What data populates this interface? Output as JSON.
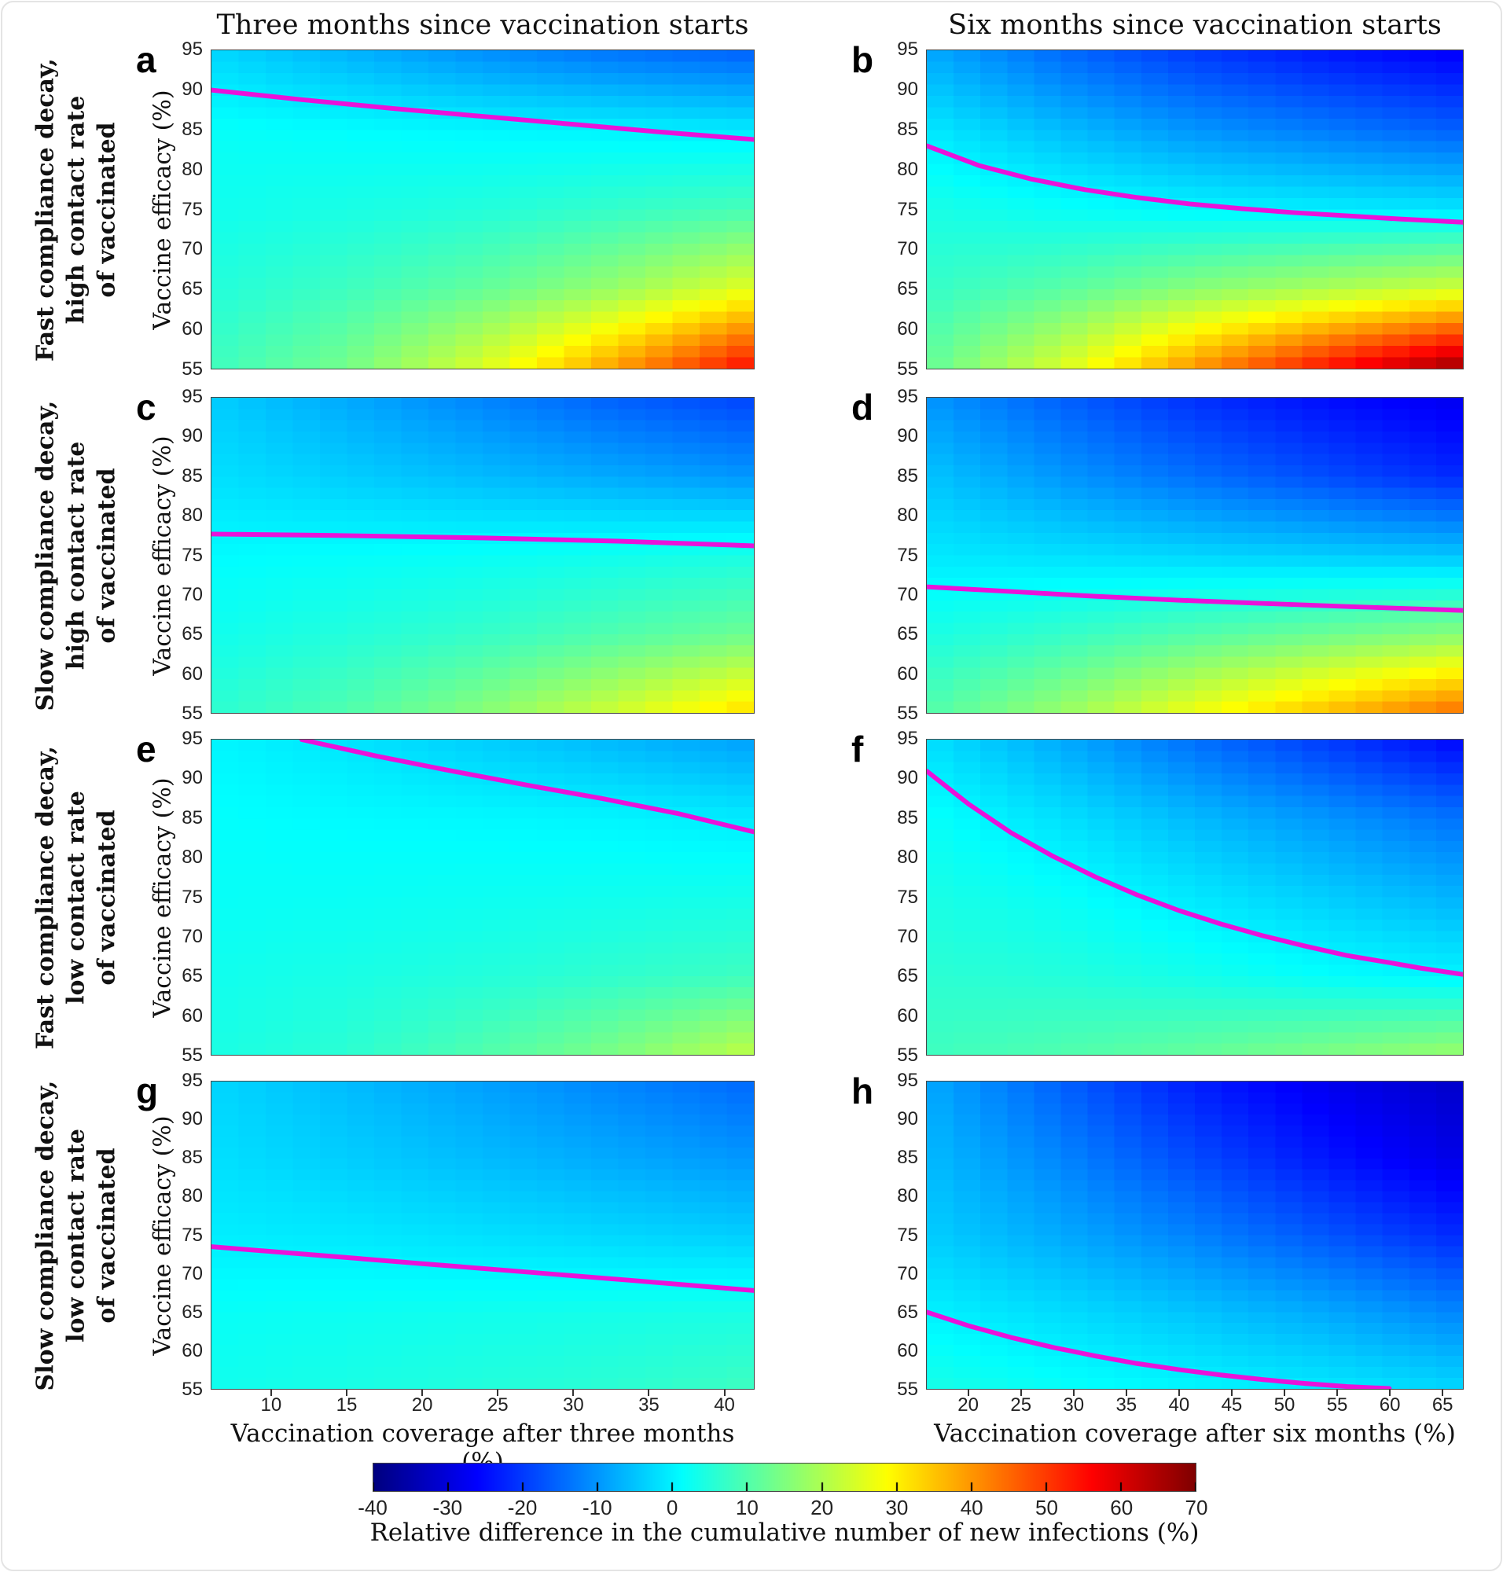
{
  "figure": {
    "col_titles": [
      "Three months since vaccination starts",
      "Six months since vaccination starts"
    ],
    "row_labels": [
      [
        "Fast compliance decay,",
        "high contact rate",
        "of vaccinated"
      ],
      [
        "Slow compliance decay,",
        "high contact rate",
        "of vaccinated"
      ],
      [
        "Fast compliance decay,",
        "low contact rate",
        "of vaccinated"
      ],
      [
        "Slow compliance decay,",
        "low contact rate",
        "of vaccinated"
      ]
    ],
    "y_axis_label": "Vaccine efficacy (%)",
    "x_axis_labels": [
      "Vaccination coverage after three months (%)",
      "Vaccination coverage after six months (%)"
    ],
    "panel_letters": [
      "a",
      "b",
      "c",
      "d",
      "e",
      "f",
      "g",
      "h"
    ],
    "colorbar": {
      "label": "Relative difference in the cumulative number of new infections (%)",
      "min": -40,
      "max": 70,
      "ticks": [
        -40,
        -30,
        -20,
        -10,
        0,
        10,
        20,
        30,
        40,
        50,
        60,
        70
      ],
      "colormap": "jet"
    },
    "contour_color": "#e912d9"
  },
  "chart_data": [
    {
      "type": "heatmap",
      "id": "a",
      "letter": "a",
      "row": 0,
      "col": 0,
      "x_range": [
        6,
        42
      ],
      "y_range": [
        55,
        95
      ],
      "x_ticks": [
        10,
        15,
        20,
        25,
        30,
        35,
        40
      ],
      "y_ticks": [
        55,
        60,
        65,
        70,
        75,
        80,
        85,
        90,
        95
      ],
      "grid": {
        "x": [
          6,
          15,
          24,
          33,
          42
        ],
        "y": [
          95,
          85,
          75,
          65,
          55
        ],
        "values": [
          [
            -3,
            -7,
            -11,
            -14,
            -16
          ],
          [
            2,
            1.2,
            0.6,
            0,
            -1
          ],
          [
            3,
            4,
            5,
            7,
            9
          ],
          [
            5,
            8,
            12,
            18,
            26
          ],
          [
            8,
            14,
            25,
            40,
            56
          ]
        ]
      },
      "zero_contour": [
        [
          6,
          90
        ],
        [
          12,
          88.8
        ],
        [
          18,
          87.7
        ],
        [
          24,
          86.7
        ],
        [
          30,
          85.7
        ],
        [
          36,
          84.7
        ],
        [
          42,
          83.8
        ]
      ]
    },
    {
      "type": "heatmap",
      "id": "b",
      "letter": "b",
      "row": 0,
      "col": 1,
      "x_range": [
        16,
        67
      ],
      "y_range": [
        55,
        95
      ],
      "x_ticks": [
        20,
        25,
        30,
        35,
        40,
        45,
        50,
        55,
        60,
        65
      ],
      "y_ticks": [
        55,
        60,
        65,
        70,
        75,
        80,
        85,
        90,
        95
      ],
      "grid": {
        "x": [
          16,
          29,
          41,
          54,
          67
        ],
        "y": [
          95,
          85,
          75,
          65,
          55
        ],
        "values": [
          [
            -8,
            -15,
            -20,
            -24,
            -27
          ],
          [
            -1,
            -6,
            -10,
            -13,
            -16
          ],
          [
            4,
            2,
            0.5,
            -0.5,
            -1.5
          ],
          [
            7,
            11,
            16,
            20,
            24
          ],
          [
            12,
            25,
            40,
            55,
            68
          ]
        ]
      },
      "zero_contour": [
        [
          16,
          83
        ],
        [
          21,
          80.5
        ],
        [
          26,
          78.8
        ],
        [
          31,
          77.5
        ],
        [
          36,
          76.5
        ],
        [
          41,
          75.7
        ],
        [
          46,
          75.1
        ],
        [
          51,
          74.6
        ],
        [
          56,
          74.2
        ],
        [
          61,
          73.8
        ],
        [
          67,
          73.4
        ]
      ]
    },
    {
      "type": "heatmap",
      "id": "c",
      "letter": "c",
      "row": 1,
      "col": 0,
      "x_range": [
        6,
        42
      ],
      "y_range": [
        55,
        95
      ],
      "x_ticks": [
        10,
        15,
        20,
        25,
        30,
        35,
        40
      ],
      "y_ticks": [
        55,
        60,
        65,
        70,
        75,
        80,
        85,
        90,
        95
      ],
      "grid": {
        "x": [
          6,
          15,
          24,
          33,
          42
        ],
        "y": [
          95,
          85,
          75,
          65,
          55
        ],
        "values": [
          [
            -4,
            -8,
            -12,
            -16,
            -19
          ],
          [
            -2,
            -4,
            -6,
            -8,
            -10
          ],
          [
            1,
            1.5,
            2,
            3,
            4
          ],
          [
            3,
            5,
            7,
            10,
            13
          ],
          [
            6,
            10,
            16,
            24,
            33
          ]
        ]
      },
      "zero_contour": [
        [
          6,
          77.7
        ],
        [
          15,
          77.5
        ],
        [
          24,
          77.2
        ],
        [
          33,
          76.8
        ],
        [
          42,
          76.2
        ]
      ]
    },
    {
      "type": "heatmap",
      "id": "d",
      "letter": "d",
      "row": 1,
      "col": 1,
      "x_range": [
        16,
        67
      ],
      "y_range": [
        55,
        95
      ],
      "x_ticks": [
        20,
        25,
        30,
        35,
        40,
        45,
        50,
        55,
        60,
        65
      ],
      "y_ticks": [
        55,
        60,
        65,
        70,
        75,
        80,
        85,
        90,
        95
      ],
      "grid": {
        "x": [
          16,
          29,
          41,
          54,
          67
        ],
        "y": [
          95,
          85,
          75,
          65,
          55
        ],
        "values": [
          [
            -10,
            -16,
            -21,
            -25,
            -28
          ],
          [
            -5,
            -10,
            -14,
            -18,
            -22
          ],
          [
            -1,
            -2,
            -3,
            -4,
            -5
          ],
          [
            4,
            7,
            10,
            13,
            16
          ],
          [
            10,
            18,
            27,
            36,
            45
          ]
        ]
      },
      "zero_contour": [
        [
          16,
          71
        ],
        [
          24,
          70.4
        ],
        [
          32,
          69.8
        ],
        [
          40,
          69.3
        ],
        [
          48,
          68.9
        ],
        [
          56,
          68.5
        ],
        [
          67,
          68
        ]
      ]
    },
    {
      "type": "heatmap",
      "id": "e",
      "letter": "e",
      "row": 2,
      "col": 0,
      "x_range": [
        6,
        42
      ],
      "y_range": [
        55,
        95
      ],
      "x_ticks": [
        10,
        15,
        20,
        25,
        30,
        35,
        40
      ],
      "y_ticks": [
        55,
        60,
        65,
        70,
        75,
        80,
        85,
        90,
        95
      ],
      "grid": {
        "x": [
          6,
          15,
          24,
          33,
          42
        ],
        "y": [
          95,
          85,
          75,
          65,
          55
        ],
        "values": [
          [
            0.5,
            -1.5,
            -4,
            -6.5,
            -9
          ],
          [
            1.5,
            1,
            0.7,
            0.3,
            -0.8
          ],
          [
            2,
            2.2,
            2.6,
            3,
            3.5
          ],
          [
            3,
            4,
            5,
            6.5,
            8
          ],
          [
            4,
            6,
            10,
            15,
            22
          ]
        ]
      },
      "zero_contour": [
        [
          12,
          95
        ],
        [
          17,
          92.9
        ],
        [
          22,
          91
        ],
        [
          27,
          89.2
        ],
        [
          32,
          87.5
        ],
        [
          37,
          85.6
        ],
        [
          42,
          83.3
        ]
      ]
    },
    {
      "type": "heatmap",
      "id": "f",
      "letter": "f",
      "row": 2,
      "col": 1,
      "x_range": [
        16,
        67
      ],
      "y_range": [
        55,
        95
      ],
      "x_ticks": [
        20,
        25,
        30,
        35,
        40,
        45,
        50,
        55,
        60,
        65
      ],
      "y_ticks": [
        55,
        60,
        65,
        70,
        75,
        80,
        85,
        90,
        95
      ],
      "grid": {
        "x": [
          16,
          29,
          41,
          54,
          67
        ],
        "y": [
          95,
          85,
          75,
          65,
          55
        ],
        "values": [
          [
            -2,
            -8,
            -14,
            -20,
            -26
          ],
          [
            2,
            -2,
            -6,
            -10,
            -14
          ],
          [
            4,
            2,
            -1,
            -4,
            -7
          ],
          [
            6,
            5,
            3.5,
            1.5,
            0
          ],
          [
            8,
            10,
            12,
            15,
            18
          ]
        ]
      },
      "zero_contour": [
        [
          16,
          91
        ],
        [
          20,
          86.8
        ],
        [
          24,
          83.2
        ],
        [
          28,
          80.2
        ],
        [
          32,
          77.6
        ],
        [
          36,
          75.3
        ],
        [
          40,
          73.3
        ],
        [
          44,
          71.6
        ],
        [
          48,
          70.1
        ],
        [
          52,
          68.8
        ],
        [
          56,
          67.6
        ],
        [
          60,
          66.7
        ],
        [
          63,
          66
        ],
        [
          67,
          65.2
        ]
      ]
    },
    {
      "type": "heatmap",
      "id": "g",
      "letter": "g",
      "row": 3,
      "col": 0,
      "x_range": [
        6,
        42
      ],
      "y_range": [
        55,
        95
      ],
      "x_ticks": [
        10,
        15,
        20,
        25,
        30,
        35,
        40
      ],
      "y_ticks": [
        55,
        60,
        65,
        70,
        75,
        80,
        85,
        90,
        95
      ],
      "grid": {
        "x": [
          6,
          15,
          24,
          33,
          42
        ],
        "y": [
          95,
          85,
          75,
          65,
          55
        ],
        "values": [
          [
            -3,
            -6,
            -9,
            -12,
            -15
          ],
          [
            -2,
            -4,
            -6,
            -8,
            -10
          ],
          [
            -0.5,
            -1,
            -2,
            -3,
            -4
          ],
          [
            2,
            2.5,
            3,
            3.5,
            4
          ],
          [
            3,
            4,
            5,
            6,
            8
          ]
        ]
      },
      "zero_contour": [
        [
          6,
          73.5
        ],
        [
          13,
          72.4
        ],
        [
          20,
          71.3
        ],
        [
          27,
          70.2
        ],
        [
          34,
          69.1
        ],
        [
          42,
          67.8
        ]
      ]
    },
    {
      "type": "heatmap",
      "id": "h",
      "letter": "h",
      "row": 3,
      "col": 1,
      "x_range": [
        16,
        67
      ],
      "y_range": [
        55,
        95
      ],
      "x_ticks": [
        20,
        25,
        30,
        35,
        40,
        45,
        50,
        55,
        60,
        65
      ],
      "y_ticks": [
        55,
        60,
        65,
        70,
        75,
        80,
        85,
        90,
        95
      ],
      "grid": {
        "x": [
          16,
          29,
          41,
          54,
          67
        ],
        "y": [
          95,
          85,
          75,
          65,
          55
        ],
        "values": [
          [
            -8,
            -16,
            -23,
            -28,
            -32
          ],
          [
            -6,
            -12,
            -18,
            -24,
            -29
          ],
          [
            -4,
            -8,
            -12,
            -17,
            -22
          ],
          [
            0,
            -2.5,
            -5,
            -8,
            -12
          ],
          [
            4,
            2,
            0.5,
            -1,
            -3
          ]
        ]
      },
      "zero_contour": [
        [
          16,
          65
        ],
        [
          20,
          63.2
        ],
        [
          24,
          61.7
        ],
        [
          28,
          60.4
        ],
        [
          32,
          59.3
        ],
        [
          36,
          58.3
        ],
        [
          40,
          57.5
        ],
        [
          44,
          56.8
        ],
        [
          48,
          56.2
        ],
        [
          52,
          55.7
        ],
        [
          56,
          55.3
        ],
        [
          60,
          55.05
        ]
      ]
    }
  ]
}
